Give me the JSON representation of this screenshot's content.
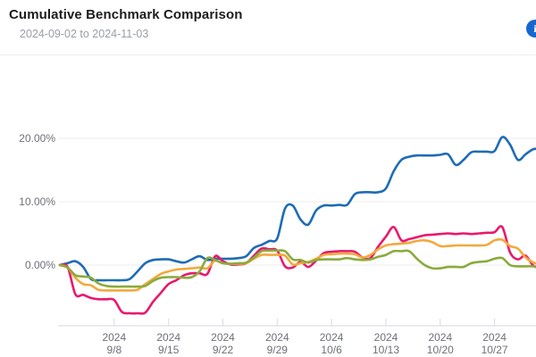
{
  "header": {
    "title": "Cumulative Benchmark Comparison",
    "subtitle": "2024-09-02 to 2024-11-03",
    "info_icon_glyph": "i"
  },
  "colors": {
    "title_text": "#1d1d1f",
    "subtitle_text": "#9a9ea6",
    "axis_text": "#6e7079",
    "gridline": "#ececec",
    "axis_line": "#d8dade",
    "info_button": "#1766cf"
  },
  "chart_data": {
    "type": "line",
    "title": "Cumulative Benchmark Comparison",
    "date_range": {
      "start": "2024-09-02",
      "end": "2024-11-03"
    },
    "unit": "%",
    "legend": "none",
    "grid": "horizontal-only",
    "ylim": [
      -10,
      25
    ],
    "x": [
      "9/1",
      "9/2",
      "9/3",
      "9/4",
      "9/5",
      "9/6",
      "9/7",
      "9/8",
      "9/9",
      "9/10",
      "9/11",
      "9/12",
      "9/13",
      "9/14",
      "9/15",
      "9/16",
      "9/17",
      "9/18",
      "9/19",
      "9/20",
      "9/21",
      "9/22",
      "9/23",
      "9/24",
      "9/25",
      "9/26",
      "9/27",
      "9/28",
      "9/29",
      "9/30",
      "10/1",
      "10/2",
      "10/3",
      "10/4",
      "10/5",
      "10/6",
      "10/7",
      "10/8",
      "10/9",
      "10/10",
      "10/11",
      "10/12",
      "10/13",
      "10/14",
      "10/15",
      "10/16",
      "10/17",
      "10/18",
      "10/19",
      "10/20",
      "10/21",
      "10/22",
      "10/23",
      "10/24",
      "10/25",
      "10/26",
      "10/27",
      "10/28",
      "10/29",
      "10/30",
      "10/31",
      "11/1",
      "11/2",
      "11/3"
    ],
    "x_axis": {
      "tick_labels": [
        [
          "2024",
          "9/8"
        ],
        [
          "2024",
          "9/15"
        ],
        [
          "2024",
          "9/22"
        ],
        [
          "2024",
          "9/29"
        ],
        [
          "2024",
          "10/6"
        ],
        [
          "2024",
          "10/13"
        ],
        [
          "2024",
          "10/20"
        ],
        [
          "2024",
          "10/27"
        ]
      ],
      "tick_day_indices": [
        7,
        14,
        21,
        28,
        35,
        42,
        49,
        56
      ]
    },
    "y_axis": {
      "tick_labels": [
        "0.00%",
        "10.00%",
        "20.00%"
      ],
      "tick_values": [
        0,
        10,
        20
      ]
    },
    "series": [
      {
        "name": "blue",
        "color": "#1e6cb5",
        "values": [
          0,
          0.3,
          0.6,
          -0.3,
          -2.2,
          -2.4,
          -2.4,
          -2.4,
          -2.4,
          -2.2,
          -1.0,
          0.3,
          0.8,
          0.9,
          0.9,
          0.6,
          0.4,
          0.9,
          1.4,
          0.8,
          1.0,
          1.0,
          1.0,
          1.1,
          1.4,
          2.7,
          3.2,
          3.8,
          4.2,
          8.9,
          9.4,
          7.2,
          6.4,
          8.6,
          9.4,
          9.4,
          9.5,
          9.5,
          11.2,
          11.5,
          11.5,
          11.5,
          12.1,
          14.8,
          16.6,
          17.1,
          17.3,
          17.3,
          17.3,
          17.4,
          17.5,
          15.8,
          16.6,
          17.8,
          17.9,
          17.9,
          18.0,
          20.2,
          19.0,
          16.6,
          17.5,
          18.3,
          18.3,
          18.3
        ]
      },
      {
        "name": "pink",
        "color": "#e8196d",
        "values": [
          0,
          -0.3,
          -4.6,
          -4.7,
          -5.2,
          -5.4,
          -5.4,
          -5.5,
          -7.4,
          -7.6,
          -7.6,
          -7.5,
          -5.8,
          -4.4,
          -3.0,
          -2.4,
          -1.6,
          -1.3,
          -1.3,
          -1.4,
          1.4,
          0.6,
          0.1,
          0.1,
          0.3,
          1.5,
          2.6,
          2.5,
          2.3,
          -0.2,
          -0.4,
          0.5,
          -0.3,
          0.7,
          1.9,
          2.1,
          2.2,
          2.2,
          2.1,
          1.2,
          1.1,
          2.9,
          4.5,
          6.0,
          3.9,
          4.1,
          4.4,
          4.7,
          4.8,
          4.9,
          5.0,
          4.9,
          5.0,
          4.9,
          5.0,
          5.1,
          5.2,
          6.0,
          2.0,
          0.9,
          1.5,
          -0.1,
          -0.3,
          1.0
        ]
      },
      {
        "name": "orange",
        "color": "#f2a93c",
        "values": [
          0,
          -0.4,
          -2.0,
          -3.0,
          -3.2,
          -3.9,
          -4.0,
          -4.0,
          -4.0,
          -4.0,
          -3.9,
          -3.0,
          -2.2,
          -1.4,
          -1.0,
          -0.7,
          -0.6,
          -0.5,
          -0.4,
          -0.5,
          0.7,
          0.3,
          0.2,
          0.2,
          0.3,
          1.0,
          1.6,
          1.6,
          1.6,
          1.5,
          0.1,
          0.3,
          0.5,
          1.0,
          1.6,
          1.7,
          1.8,
          1.8,
          1.7,
          1.2,
          1.6,
          2.5,
          3.1,
          3.3,
          3.4,
          3.5,
          3.8,
          3.9,
          3.6,
          3.0,
          3.0,
          3.1,
          3.1,
          3.1,
          3.1,
          3.2,
          3.9,
          4.0,
          3.0,
          2.6,
          1.2,
          0.4,
          0.1,
          0.1
        ]
      },
      {
        "name": "green",
        "color": "#8aab3c",
        "values": [
          0,
          -0.4,
          -1.6,
          -1.8,
          -2.0,
          -2.9,
          -3.3,
          -3.4,
          -3.4,
          -3.4,
          -3.4,
          -3.3,
          -2.5,
          -2.0,
          -1.9,
          -1.9,
          -2.0,
          -1.9,
          -1.0,
          1.1,
          0.8,
          0.3,
          0.2,
          0.3,
          0.4,
          1.2,
          2.2,
          2.3,
          2.3,
          2.2,
          0.9,
          0.8,
          0.4,
          0.8,
          0.9,
          0.9,
          0.9,
          1.1,
          0.9,
          0.8,
          0.9,
          1.3,
          1.6,
          2.2,
          2.2,
          2.2,
          1.0,
          0.0,
          -0.5,
          -0.5,
          -0.3,
          -0.3,
          -0.3,
          0.3,
          0.5,
          0.6,
          1.0,
          1.1,
          0.0,
          -0.2,
          -0.2,
          -0.2,
          -0.3,
          0.0
        ]
      }
    ]
  }
}
